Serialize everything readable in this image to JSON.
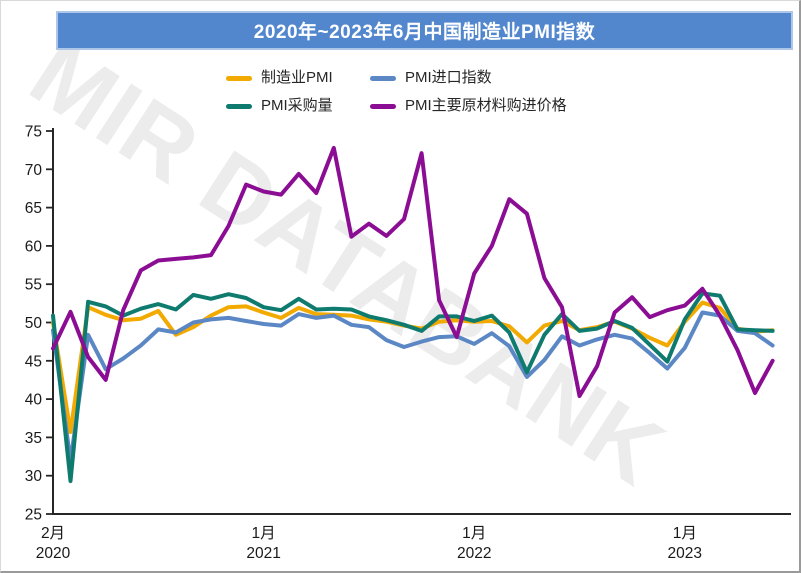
{
  "title": {
    "text": "2020年~2023年6月中国制造业PMI指数"
  },
  "watermark": {
    "text": "MIR DATABANK"
  },
  "colors": {
    "banner_bg": "#5287CE",
    "banner_border": "#aec7e8",
    "axis": "#262626",
    "watermark": "#ececec"
  },
  "legend": [
    {
      "label": "制造业PMI",
      "color": "#F2A900"
    },
    {
      "label": "PMI进口指数",
      "color": "#5B87C5"
    },
    {
      "label": "PMI采购量",
      "color": "#0F7B6F"
    },
    {
      "label": "PMI主要原材料购进价格",
      "color": "#8B0D93"
    }
  ],
  "chart_data": {
    "type": "line",
    "title": "2020年~2023年6月中国制造业PMI指数",
    "grid": false,
    "legend_position": "top",
    "ylim": [
      25,
      75
    ],
    "ytick_step": 5,
    "y_ticks": [
      25,
      30,
      35,
      40,
      45,
      50,
      55,
      60,
      65,
      70,
      75
    ],
    "x": [
      "2020-01",
      "2020-02",
      "2020-03",
      "2020-04",
      "2020-05",
      "2020-06",
      "2020-07",
      "2020-08",
      "2020-09",
      "2020-10",
      "2020-11",
      "2020-12",
      "2021-01",
      "2021-02",
      "2021-03",
      "2021-04",
      "2021-05",
      "2021-06",
      "2021-07",
      "2021-08",
      "2021-09",
      "2021-10",
      "2021-11",
      "2021-12",
      "2022-01",
      "2022-02",
      "2022-03",
      "2022-04",
      "2022-05",
      "2022-06",
      "2022-07",
      "2022-08",
      "2022-09",
      "2022-10",
      "2022-11",
      "2022-12",
      "2023-01",
      "2023-02",
      "2023-03",
      "2023-04",
      "2023-05",
      "2023-06"
    ],
    "x_ticks": [
      {
        "index": 0,
        "month": "2月",
        "year": "2020"
      },
      {
        "index": 12,
        "month": "1月",
        "year": "2021"
      },
      {
        "index": 24,
        "month": "1月",
        "year": "2022"
      },
      {
        "index": 36,
        "month": "1月",
        "year": "2023"
      }
    ],
    "series": [
      {
        "name": "制造业PMI",
        "color": "#F2A900",
        "values": [
          50.0,
          35.7,
          52.0,
          51.0,
          50.3,
          50.5,
          51.5,
          48.4,
          49.4,
          50.9,
          52.0,
          52.1,
          51.3,
          50.6,
          51.9,
          51.1,
          51.0,
          50.9,
          50.4,
          50.1,
          49.6,
          49.2,
          50.1,
          50.3,
          50.1,
          50.2,
          49.5,
          47.4,
          49.6,
          50.2,
          49.0,
          49.4,
          50.1,
          49.2,
          48.0,
          47.0,
          50.1,
          52.6,
          51.9,
          49.2,
          48.8,
          49.0
        ]
      },
      {
        "name": "PMI进口指数",
        "color": "#5B87C5",
        "values": [
          49.0,
          31.9,
          48.4,
          43.9,
          45.3,
          47.0,
          49.1,
          48.7,
          50.0,
          50.4,
          50.6,
          50.2,
          49.8,
          49.6,
          51.1,
          50.6,
          50.9,
          49.7,
          49.4,
          47.7,
          46.8,
          47.5,
          48.1,
          48.2,
          47.2,
          48.6,
          46.9,
          42.9,
          45.1,
          48.2,
          47.0,
          47.8,
          48.4,
          47.9,
          46.0,
          44.0,
          46.7,
          51.3,
          50.9,
          48.9,
          48.6,
          47.0
        ]
      },
      {
        "name": "PMI采购量",
        "color": "#0F7B6F",
        "values": [
          50.9,
          29.3,
          52.7,
          52.1,
          50.9,
          51.8,
          52.4,
          51.7,
          53.6,
          53.1,
          53.7,
          53.2,
          52.0,
          51.6,
          53.1,
          51.7,
          51.8,
          51.7,
          50.8,
          50.3,
          49.7,
          48.9,
          50.8,
          50.8,
          50.2,
          50.9,
          48.7,
          43.5,
          48.4,
          51.1,
          48.9,
          49.2,
          50.2,
          49.3,
          47.1,
          44.9,
          50.4,
          53.8,
          53.5,
          49.1,
          49.0,
          48.9
        ]
      },
      {
        "name": "PMI主要原材料购进价格",
        "color": "#8B0D93",
        "values": [
          46.6,
          51.4,
          45.5,
          42.5,
          51.6,
          56.8,
          58.1,
          58.3,
          58.5,
          58.8,
          62.6,
          68.0,
          67.1,
          66.7,
          69.4,
          66.9,
          72.8,
          61.2,
          62.9,
          61.3,
          63.5,
          72.1,
          52.9,
          48.1,
          56.4,
          60.0,
          66.1,
          64.2,
          55.8,
          52.0,
          40.4,
          44.3,
          51.3,
          53.3,
          50.7,
          51.6,
          52.2,
          54.4,
          50.9,
          46.4,
          40.8,
          45.0
        ]
      }
    ]
  }
}
